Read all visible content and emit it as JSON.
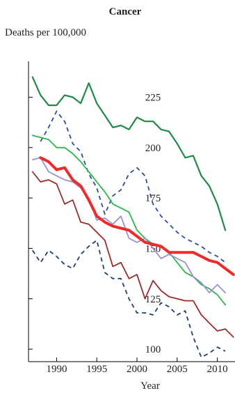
{
  "chart_data": {
    "type": "line",
    "title": "Cancer",
    "ylabel": "Deaths per 100,000",
    "xlabel": "Year",
    "xlim": [
      1986.5,
      2012.2
    ],
    "ylim": [
      93.8,
      242.8
    ],
    "x_ticks": [
      1990,
      1995,
      2000,
      2005,
      2010
    ],
    "x_tick_labels": [
      "1990",
      "1995",
      "2000",
      "2005",
      "2010"
    ],
    "y_ticks": [
      100,
      125,
      150,
      175,
      200,
      225
    ],
    "y_tick_labels": [
      "100",
      "125",
      "150",
      "175",
      "200",
      "225"
    ],
    "grid": false,
    "legend": "none",
    "series": [
      {
        "color": "#1e8a44",
        "dash": "solid",
        "width": 2.2,
        "x": [
          1987,
          1988,
          1989,
          1990,
          1991,
          1992,
          1993,
          1994,
          1995,
          1996,
          1997,
          1998,
          1999,
          2000,
          2001,
          2002,
          2003,
          2004,
          2005,
          2006,
          2007,
          2008,
          2009,
          2010,
          2011
        ],
        "values": [
          235,
          226,
          221,
          221,
          226,
          225,
          222,
          232,
          222,
          216,
          210,
          211,
          209,
          215,
          213,
          213,
          209,
          208,
          202,
          195,
          196,
          186,
          181,
          172,
          159
        ]
      },
      {
        "color": "#2f4a9a",
        "dash": "dashed",
        "width": 1.8,
        "x": [
          1988,
          1989,
          1990,
          1991,
          1992,
          1993,
          1994,
          1995,
          1996,
          1997,
          1998,
          1999,
          2000,
          2001,
          2002,
          2003,
          2004,
          2005,
          2006,
          2007,
          2008,
          2009,
          2010,
          2011
        ],
        "values": [
          203,
          210,
          218,
          213,
          202,
          198,
          187,
          180,
          167,
          176,
          179,
          187,
          190,
          186,
          172,
          166,
          162,
          158,
          155,
          153,
          151,
          148,
          146,
          143
        ]
      },
      {
        "color": "#2ab84a",
        "dash": "solid",
        "width": 1.8,
        "x": [
          1987,
          1988,
          1989,
          1990,
          1991,
          1992,
          1993,
          1994,
          1995,
          1996,
          1997,
          1998,
          1999,
          2000,
          2001,
          2002,
          2003,
          2004,
          2005,
          2006,
          2007,
          2008,
          2009,
          2010,
          2011
        ],
        "values": [
          206,
          205,
          204,
          200,
          200,
          197,
          193,
          188,
          183,
          178,
          172,
          170,
          168,
          159,
          155,
          152,
          151,
          148,
          143,
          138,
          136,
          132,
          130,
          127,
          122
        ]
      },
      {
        "color": "#9b8fce",
        "dash": "solid",
        "width": 1.8,
        "x": [
          1987,
          1988,
          1989,
          1990,
          1991,
          1992,
          1993,
          1994,
          1995,
          1996,
          1997,
          1998,
          1999,
          2000,
          2001,
          2002,
          2003,
          2004,
          2005,
          2006,
          2007,
          2008,
          2009,
          2010,
          2011
        ],
        "values": [
          194,
          195,
          188,
          186,
          184,
          183,
          180,
          175,
          164,
          165,
          162,
          166,
          155,
          153,
          155,
          150,
          145,
          147,
          145,
          143,
          136,
          133,
          128,
          132,
          128
        ]
      },
      {
        "color": "#ee2b2b",
        "dash": "solid",
        "width": 4,
        "x": [
          1988,
          1989,
          1990,
          1991,
          1992,
          1993,
          1994,
          1995,
          1996,
          1997,
          1998,
          1999,
          2000,
          2001,
          2002,
          2003,
          2004,
          2005,
          2006,
          2007,
          2008,
          2009,
          2010,
          2011,
          2012
        ],
        "values": [
          195,
          193,
          189,
          190,
          184,
          181,
          174,
          166,
          163,
          161,
          160,
          159,
          156,
          153,
          152,
          151,
          148,
          148,
          148,
          148,
          146,
          144,
          143,
          140,
          137
        ]
      },
      {
        "color": "#9b2b2b",
        "dash": "solid",
        "width": 1.8,
        "x": [
          1987,
          1988,
          1989,
          1990,
          1991,
          1992,
          1993,
          1994,
          1995,
          1996,
          1997,
          1998,
          1999,
          2000,
          2001,
          2002,
          2003,
          2004,
          2005,
          2006,
          2007,
          2008,
          2009,
          2010,
          2011,
          2012
        ],
        "values": [
          188,
          183,
          184,
          182,
          172,
          174,
          163,
          162,
          158,
          154,
          141,
          143,
          135,
          137,
          125,
          134,
          129,
          126,
          125,
          124,
          124,
          117,
          113,
          109,
          110,
          106
        ]
      },
      {
        "color": "#1e3f66",
        "dash": "dashed",
        "width": 1.8,
        "x": [
          1987,
          1988,
          1989,
          1990,
          1991,
          1992,
          1993,
          1994,
          1995,
          1996,
          1997,
          1998,
          1999,
          2000,
          2001,
          2002,
          2003,
          2004,
          2005,
          2006,
          2007,
          2008,
          2009,
          2010,
          2011
        ],
        "values": [
          149,
          143,
          149,
          146,
          142,
          140,
          147,
          151,
          154,
          138,
          135,
          135,
          125,
          118,
          118,
          117,
          123,
          121,
          117,
          119,
          106,
          96,
          98,
          101,
          99
        ]
      }
    ]
  }
}
